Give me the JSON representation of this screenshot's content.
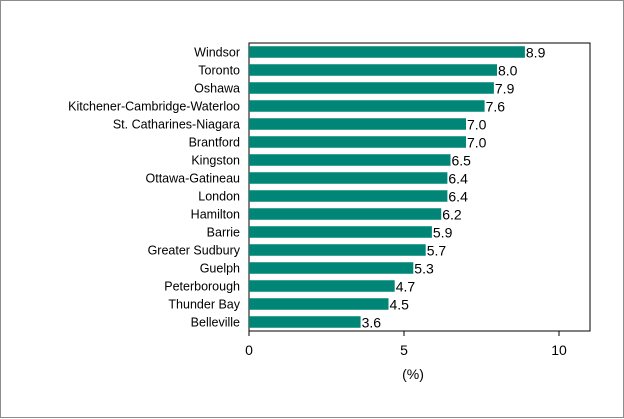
{
  "chart_data": {
    "type": "bar",
    "orientation": "horizontal",
    "categories": [
      "Windsor",
      "Toronto",
      "Oshawa",
      "Kitchener-Cambridge-Waterloo",
      "St. Catharines-Niagara",
      "Brantford",
      "Kingston",
      "Ottawa-Gatineau",
      "London",
      "Hamilton",
      "Barrie",
      "Greater Sudbury",
      "Guelph",
      "Peterborough",
      "Thunder Bay",
      "Belleville"
    ],
    "values": [
      8.9,
      8.0,
      7.9,
      7.6,
      7.0,
      7.0,
      6.5,
      6.4,
      6.4,
      6.2,
      5.9,
      5.7,
      5.3,
      4.7,
      4.5,
      3.6
    ],
    "value_labels": [
      "8.9",
      "8.0",
      "7.9",
      "7.6",
      "7.0",
      "7.0",
      "6.5",
      "6.4",
      "6.4",
      "6.2",
      "5.9",
      "5.7",
      "5.3",
      "4.7",
      "4.5",
      "3.6"
    ],
    "xlabel": "(%)",
    "ylabel": "",
    "xlim": [
      0,
      11
    ],
    "xticks": [
      0,
      5,
      10
    ],
    "xtick_labels": [
      "0",
      "5",
      "10"
    ],
    "grid": false,
    "legend": "none",
    "bar_color": "#008577"
  }
}
